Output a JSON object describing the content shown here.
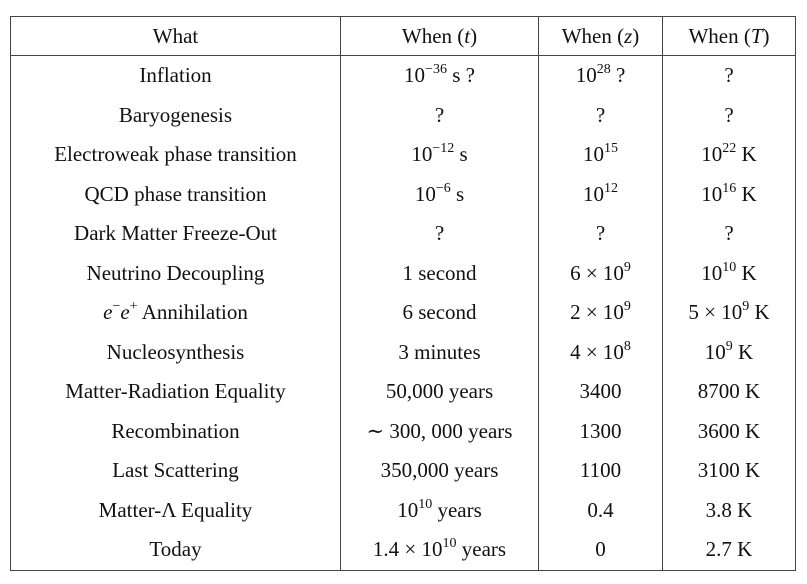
{
  "headers": [
    "What",
    "When (t)",
    "When (z)",
    "When (T)"
  ],
  "rows": [
    {
      "what": "Inflation",
      "t": "10^{−36} s  ?",
      "z": "10^{28} ?",
      "T": "?"
    },
    {
      "what": "Baryogenesis",
      "t": "?",
      "z": "?",
      "T": "?"
    },
    {
      "what": "Electroweak phase transition",
      "t": "10^{−12} s",
      "z": "10^{15}",
      "T": "10^{22} K"
    },
    {
      "what": "QCD phase transition",
      "t": "10^{−6} s",
      "z": "10^{12}",
      "T": "10^{16} K"
    },
    {
      "what": "Dark Matter Freeze-Out",
      "t": "?",
      "z": "?",
      "T": "?"
    },
    {
      "what": "Neutrino Decoupling",
      "t": "1 second",
      "z": "6 × 10^{9}",
      "T": "10^{10} K"
    },
    {
      "what": "e^{−}e^{+} Annihilation",
      "t": "6 second",
      "z": "2 × 10^{9}",
      "T": "5 × 10^{9} K"
    },
    {
      "what": "Nucleosynthesis",
      "t": "3 minutes",
      "z": "4 × 10^{8}",
      "T": "10^{9} K"
    },
    {
      "what": "Matter-Radiation Equality",
      "t": "50,000 years",
      "z": "3400",
      "T": "8700 K"
    },
    {
      "what": "Recombination",
      "t": "∼ 300, 000 years",
      "z": "1300",
      "T": "3600 K"
    },
    {
      "what": "Last Scattering",
      "t": "350,000 years",
      "z": "1100",
      "T": "3100 K"
    },
    {
      "what": "Matter-Λ Equality",
      "t": "10^{10} years",
      "z": "0.4",
      "T": "3.8 K"
    },
    {
      "what": "Today",
      "t": "1.4 × 10^{10} years",
      "z": "0",
      "T": "2.7 K"
    }
  ]
}
